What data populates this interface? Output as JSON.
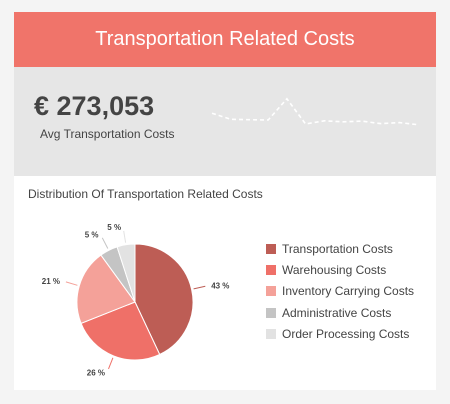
{
  "header": {
    "title": "Transportation Related Costs"
  },
  "kpi": {
    "value": "€ 273,053",
    "label": "Avg Transportation Costs",
    "sparkline": [
      0.45,
      0.62,
      0.63,
      0.64,
      0.05,
      0.75,
      0.66,
      0.69,
      0.67,
      0.74,
      0.71,
      0.77
    ]
  },
  "section": {
    "title": "Distribution Of Transportation Related Costs"
  },
  "colors": {
    "header": "#f0746a",
    "sparkline": "#ffffff"
  },
  "chart_data": {
    "type": "pie",
    "categories": [
      "Transportation Costs",
      "Warehousing Costs",
      "Inventory Carrying Costs",
      "Administrative Costs",
      "Order Processing Costs"
    ],
    "values": [
      43,
      26,
      21,
      5,
      5
    ],
    "labels": [
      "43 %",
      "26 %",
      "21 %",
      "5 %",
      "5 %"
    ],
    "colors": [
      "#bd5d55",
      "#ef7068",
      "#f4a199",
      "#c4c4c4",
      "#e2e2e2"
    ],
    "legend_position": "right"
  }
}
